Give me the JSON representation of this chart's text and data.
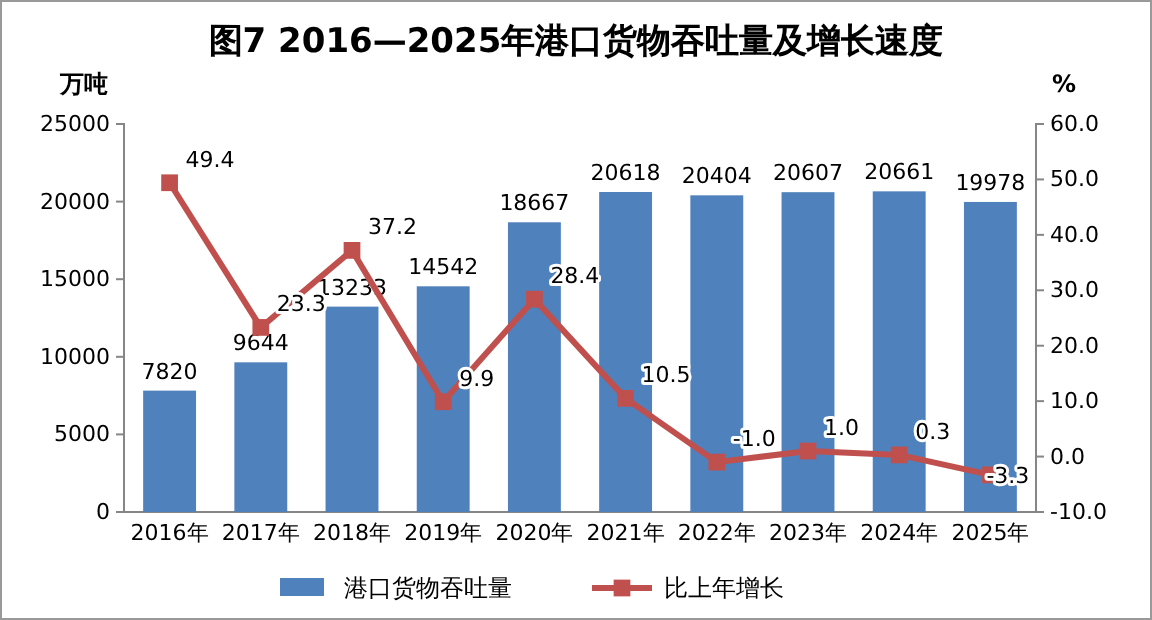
{
  "chart_data": {
    "type": "bar",
    "title": "图7  2016—2025年港口货物吞吐量及增长速度",
    "ylabel": "万吨",
    "y2label": "%",
    "categories": [
      "2016年",
      "2017年",
      "2018年",
      "2019年",
      "2020年",
      "2021年",
      "2022年",
      "2023年",
      "2024年",
      "2025年"
    ],
    "series": [
      {
        "name": "港口货物吞吐量",
        "color": "#4f81bd",
        "values": [
          7820,
          9644,
          13233,
          14542,
          18667,
          20618,
          20404,
          20607,
          20661,
          19978
        ],
        "value_labels": [
          "7820",
          "9644",
          "13233",
          "14542",
          "18667",
          "20618",
          "20404",
          "20607",
          "20661",
          "19978"
        ]
      },
      {
        "name": "比上年增长",
        "type": "line",
        "axis": "y2",
        "color": "#c0504d",
        "marker": "square",
        "values": [
          49.4,
          23.3,
          37.2,
          9.9,
          28.4,
          10.5,
          -1.0,
          1.0,
          0.3,
          -3.3
        ],
        "value_labels": [
          "49.4",
          "23.3",
          "37.2",
          "9.9",
          "28.4",
          "10.5",
          "-1.0",
          "1.0",
          "0.3",
          "-3.3"
        ]
      }
    ],
    "ylim": [
      0,
      25000
    ],
    "yticks": [
      0,
      5000,
      10000,
      15000,
      20000,
      25000
    ],
    "y2lim": [
      -10,
      60
    ],
    "y2ticks": [
      {
        "value": -10,
        "label": "-10.0"
      },
      {
        "value": 0,
        "label": "0.0"
      },
      {
        "value": 10,
        "label": "10.0"
      },
      {
        "value": 20,
        "label": "20.0"
      },
      {
        "value": 30,
        "label": "30.0"
      },
      {
        "value": 40,
        "label": "40.0"
      },
      {
        "value": 50,
        "label": "50.0"
      },
      {
        "value": 60,
        "label": "60.0"
      }
    ],
    "legend": "bottom"
  }
}
